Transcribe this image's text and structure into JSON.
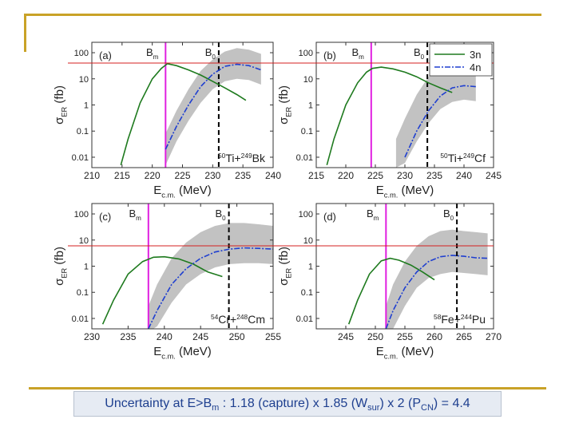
{
  "caption": {
    "p1": "Uncertainty at E>B",
    "p1_sub": "m",
    "p2": " :  1.18 (capture) x 1.85 (W",
    "p2_sub": "sur",
    "p3": ") x 2 (P",
    "p3_sub": "CN",
    "p4": ") = 4.4"
  },
  "colors": {
    "band": "#c2c2c2",
    "n3": "#1e7a1e",
    "n4": "#1f3fd0",
    "bm": "#e020e0",
    "ref": "#d42020",
    "b0": "#000000",
    "frame": "#c9a227"
  },
  "axis_label_y": {
    "main": "σ",
    "sub": "ER",
    "unit": " (fb)"
  },
  "axis_label_x": {
    "main": "E",
    "sub": "c.m.",
    "unit": " (MeV)"
  },
  "legend": [
    "3n",
    "4n"
  ],
  "chart_data": [
    {
      "type": "line",
      "panel": "(a)",
      "xlim": [
        210,
        240
      ],
      "xticks": [
        210,
        215,
        220,
        225,
        230,
        235,
        240
      ],
      "ylim": [
        0.004,
        250
      ],
      "ylog": true,
      "yticks": [
        "0.01",
        "0.1",
        "1",
        "10",
        "100"
      ],
      "bm_label": "B",
      "bm_sub": "m",
      "bm": 222.2,
      "b0_label": "B",
      "b0_sub": "0",
      "b0": 231.0,
      "ref": 40,
      "reaction": {
        "a1": "50",
        "s1": "Ti+",
        "a2": "249",
        "s2": "Bk"
      },
      "series": [
        {
          "key": "3n",
          "x": [
            214.8,
            216,
            218,
            220,
            221.5,
            222.5,
            224,
            226,
            228,
            230,
            232,
            234,
            235.5
          ],
          "y": [
            0.005,
            0.05,
            1.2,
            10,
            25,
            38,
            32,
            22,
            14,
            8,
            4.5,
            2.5,
            1.5
          ]
        },
        {
          "key": "4n",
          "x": [
            222.2,
            224,
            226,
            228,
            230,
            232,
            234,
            236,
            238
          ],
          "y": [
            0.02,
            0.15,
            1,
            5,
            15,
            30,
            36,
            32,
            22
          ]
        }
      ],
      "band": {
        "x": [
          222.2,
          224,
          226,
          228,
          230,
          232,
          234,
          236,
          238
        ],
        "lo": [
          0.005,
          0.04,
          0.25,
          1.2,
          4,
          8,
          10,
          9,
          6
        ],
        "hi": [
          0.08,
          0.6,
          4,
          20,
          55,
          110,
          150,
          130,
          90
        ]
      }
    },
    {
      "type": "line",
      "panel": "(b)",
      "xlim": [
        215,
        245
      ],
      "xticks": [
        215,
        220,
        225,
        230,
        235,
        240,
        245
      ],
      "ylim": [
        0.004,
        250
      ],
      "ylog": true,
      "yticks": [
        "0.01",
        "0.1",
        "1",
        "10",
        "100"
      ],
      "bm_label": "B",
      "bm_sub": "m",
      "bm": 224.3,
      "b0_label": "B",
      "b0_sub": "0",
      "b0": 233.8,
      "ref": 40,
      "reaction": {
        "a1": "50",
        "s1": "Ti+",
        "a2": "249",
        "s2": "Cf"
      },
      "series": [
        {
          "key": "3n",
          "x": [
            216.8,
            218,
            220,
            222,
            223.5,
            224.5,
            226,
            228,
            230,
            232,
            234,
            236,
            238
          ],
          "y": [
            0.005,
            0.05,
            1,
            7,
            18,
            25,
            28,
            24,
            18,
            12,
            7,
            4.5,
            3
          ]
        },
        {
          "key": "4n",
          "x": [
            230,
            232,
            234,
            236,
            238,
            240,
            242
          ],
          "y": [
            0.01,
            0.1,
            0.6,
            2.2,
            4.5,
            5.5,
            5
          ]
        }
      ],
      "band": {
        "x": [
          228.5,
          230,
          232,
          234,
          236,
          238,
          240,
          242
        ],
        "lo": [
          0.004,
          0.006,
          0.04,
          0.2,
          0.7,
          1.3,
          1.6,
          1.4
        ],
        "hi": [
          0.05,
          0.3,
          2.5,
          12,
          30,
          45,
          45,
          40
        ]
      }
    },
    {
      "type": "line",
      "panel": "(c)",
      "xlim": [
        230,
        255
      ],
      "xticks": [
        230,
        235,
        240,
        245,
        250,
        255
      ],
      "ylim": [
        0.004,
        250
      ],
      "ylog": true,
      "yticks": [
        "0.01",
        "0.1",
        "1",
        "10",
        "100"
      ],
      "bm_label": "B",
      "bm_sub": "m",
      "bm": 237.8,
      "b0_label": "B",
      "b0_sub": "0",
      "b0": 248.9,
      "ref": 6,
      "reaction": {
        "a1": "54",
        "s1": "Cr+",
        "a2": "248",
        "s2": "Cm"
      },
      "series": [
        {
          "key": "3n",
          "x": [
            231.5,
            233,
            235,
            237,
            238.5,
            240,
            242,
            244,
            246,
            248
          ],
          "y": [
            0.006,
            0.05,
            0.5,
            1.5,
            2.2,
            2.3,
            1.9,
            1.2,
            0.6,
            0.4
          ]
        },
        {
          "key": "4n",
          "x": [
            237.8,
            239,
            241,
            243,
            245,
            247,
            249,
            251,
            253,
            255
          ],
          "y": [
            0.004,
            0.02,
            0.2,
            0.8,
            2,
            3.5,
            4.5,
            5,
            4.8,
            4.5
          ]
        }
      ],
      "band": {
        "x": [
          237.8,
          239,
          241,
          243,
          245,
          247,
          249,
          251,
          253,
          255
        ],
        "lo": [
          0.003,
          0.005,
          0.04,
          0.2,
          0.5,
          0.9,
          1.2,
          1.3,
          1.3,
          1.2
        ],
        "hi": [
          0.03,
          0.2,
          2,
          8,
          20,
          35,
          45,
          45,
          40,
          35
        ]
      }
    },
    {
      "type": "line",
      "panel": "(d)",
      "xlim": [
        240,
        270
      ],
      "xticks": [
        245,
        250,
        255,
        260,
        265,
        270
      ],
      "ylim": [
        0.004,
        250
      ],
      "ylog": true,
      "yticks": [
        "0.01",
        "0.1",
        "1",
        "10",
        "100"
      ],
      "bm_label": "B",
      "bm_sub": "m",
      "bm": 251.8,
      "b0_label": "B",
      "b0_sub": "0",
      "b0": 263.8,
      "ref": 6,
      "reaction": {
        "a1": "58",
        "s1": "Fe+",
        "a2": "244",
        "s2": "Pu"
      },
      "series": [
        {
          "key": "3n",
          "x": [
            245.5,
            247,
            249,
            251,
            252.5,
            254,
            256,
            258,
            260
          ],
          "y": [
            0.006,
            0.05,
            0.5,
            1.6,
            2,
            1.7,
            1.1,
            0.6,
            0.3
          ]
        },
        {
          "key": "4n",
          "x": [
            251.8,
            253,
            255,
            257,
            259,
            261,
            263,
            265,
            267,
            269
          ],
          "y": [
            0.004,
            0.02,
            0.15,
            0.6,
            1.5,
            2.3,
            2.6,
            2.4,
            2.1,
            2.0
          ]
        }
      ],
      "band": {
        "x": [
          251.8,
          253,
          255,
          257,
          259,
          261,
          263,
          265,
          267,
          269
        ],
        "lo": [
          0.002,
          0.004,
          0.03,
          0.15,
          0.35,
          0.5,
          0.6,
          0.55,
          0.5,
          0.45
        ],
        "hi": [
          0.03,
          0.2,
          1.5,
          6,
          14,
          22,
          25,
          22,
          20,
          18
        ]
      }
    }
  ]
}
